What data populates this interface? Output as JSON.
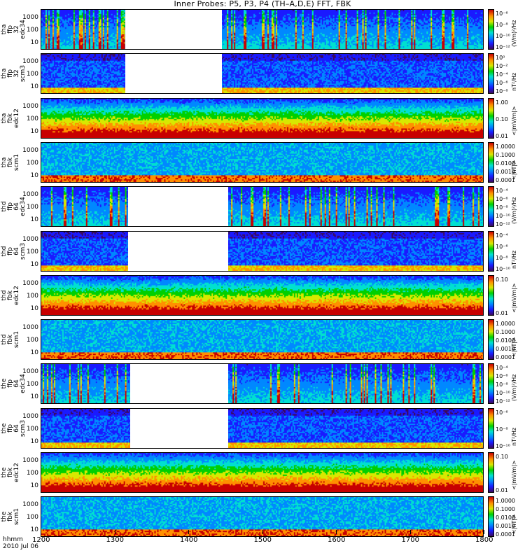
{
  "title": "Inner Probes: P5, P3, P4 (TH–A,D,E) FFT, FBK",
  "xaxis": {
    "label_top": "hhmm",
    "label_date": "2010 Jul 06",
    "ticks": [
      "1200",
      "1300",
      "1400",
      "1500",
      "1600",
      "1700",
      "1800"
    ]
  },
  "chart_data": {
    "type": "heatmap",
    "title": "Inner Probes: P5, P3, P4 (TH–A,D,E) FFT, FBK",
    "x": {
      "unit": "hhmm",
      "range": [
        1200,
        1800
      ],
      "ticks": [
        1200,
        1300,
        1400,
        1500,
        1600,
        1700,
        1800
      ]
    },
    "panels": [
      {
        "id": "tha-ffp32-edc34",
        "label": [
          "tha",
          "ffp",
          "32",
          "edc34"
        ],
        "yticks": [
          "1000",
          "100",
          "10"
        ],
        "cbar_ticks": [
          "10⁻⁶",
          "10⁻⁸",
          "10⁻¹⁰",
          "10⁻¹²"
        ],
        "cbar_unit": "(V/m)²/Hz",
        "data_gap": [
          1314,
          1445
        ]
      },
      {
        "id": "tha-ffp32-scm3",
        "label": [
          "tha",
          "ffp",
          "32",
          "scm3"
        ],
        "yticks": [
          "1000",
          "100",
          "10"
        ],
        "cbar_ticks": [
          "10⁰",
          "10⁻²",
          "10⁻⁴",
          "10⁻⁶",
          "10⁻⁸"
        ],
        "cbar_unit": "nT²/Hz",
        "data_gap": [
          1314,
          1445
        ]
      },
      {
        "id": "tha-fbk-edc12",
        "label": [
          "tha",
          "fbk",
          "edc12"
        ],
        "yticks": [
          "1000",
          "100",
          "10"
        ],
        "cbar_ticks": [
          "1.00",
          "0.10",
          "0.01"
        ],
        "cbar_unit": "<|mV/m|>",
        "data_gap": null
      },
      {
        "id": "tha-fbk-scm1",
        "label": [
          "tha",
          "fbk",
          "scm1"
        ],
        "yticks": [
          "1000",
          "100",
          "10"
        ],
        "cbar_ticks": [
          "1.0000",
          "0.1000",
          "0.0100",
          "0.0010",
          "0.0001"
        ],
        "cbar_unit": "<|nT|>",
        "data_gap": null
      },
      {
        "id": "thd-ffp64-edc34",
        "label": [
          "thd",
          "ffp",
          "64",
          "edc34"
        ],
        "yticks": [
          "1000",
          "100",
          "10"
        ],
        "cbar_ticks": [
          "10⁻⁴",
          "10⁻⁶",
          "10⁻⁸",
          "10⁻¹⁰",
          "10⁻¹²"
        ],
        "cbar_unit": "(V/m)²/Hz",
        "data_gap": [
          1318,
          1453
        ]
      },
      {
        "id": "thd-ffp64-scm3",
        "label": [
          "thd",
          "ffp",
          "64",
          "scm3"
        ],
        "yticks": [
          "1000",
          "100",
          "10"
        ],
        "cbar_ticks": [
          "10⁻⁴",
          "10⁻⁶",
          "10⁻⁸",
          "10⁻¹⁰"
        ],
        "cbar_unit": "nT²/Hz",
        "data_gap": [
          1318,
          1453
        ]
      },
      {
        "id": "thd-fbk-edc12",
        "label": [
          "thd",
          "fbk",
          "edc12"
        ],
        "yticks": [
          "1000",
          "100",
          "10"
        ],
        "cbar_ticks": [
          "0.10",
          "0.01"
        ],
        "cbar_unit": "<|mV/m|>",
        "data_gap": null
      },
      {
        "id": "thd-fbk-scm1",
        "label": [
          "thd",
          "fbk",
          "scm1"
        ],
        "yticks": [
          "1000",
          "100",
          "10"
        ],
        "cbar_ticks": [
          "1.0000",
          "0.1000",
          "0.0100",
          "0.0010",
          "0.0001"
        ],
        "cbar_unit": "<|nT|>",
        "data_gap": null
      },
      {
        "id": "the-ffp64-edc34",
        "label": [
          "the",
          "ffp",
          "64",
          "edc34"
        ],
        "yticks": [
          "1000",
          "100",
          "10"
        ],
        "cbar_ticks": [
          "10⁻⁴",
          "10⁻⁶",
          "10⁻⁸",
          "10⁻¹⁰",
          "10⁻¹²"
        ],
        "cbar_unit": "(V/m)²/Hz",
        "data_gap": [
          1320,
          1453
        ]
      },
      {
        "id": "the-ffp64-scm3",
        "label": [
          "the",
          "ffp",
          "64",
          "scm3"
        ],
        "yticks": [
          "1000",
          "100",
          "10"
        ],
        "cbar_ticks": [
          "10⁻⁶",
          "10⁻⁸",
          "10⁻¹⁰"
        ],
        "cbar_unit": "nT²/Hz",
        "data_gap": [
          1320,
          1453
        ]
      },
      {
        "id": "the-fbk-edc12",
        "label": [
          "the",
          "fbk",
          "edc12"
        ],
        "yticks": [
          "1000",
          "100",
          "10"
        ],
        "cbar_ticks": [
          "0.10",
          "0.01"
        ],
        "cbar_unit": "<|mV/m|>",
        "data_gap": null
      },
      {
        "id": "the-fbk-scm1",
        "label": [
          "the",
          "fbk",
          "scm1"
        ],
        "yticks": [
          "1000",
          "100",
          "10"
        ],
        "cbar_ticks": [
          "1.0000",
          "0.1000",
          "0.0100",
          "0.0010",
          "0.0001"
        ],
        "cbar_unit": "<|nT|>",
        "data_gap": null
      }
    ],
    "colorbar_colors": [
      "#3b0a5c",
      "#1a1aff",
      "#0088ff",
      "#00e0d0",
      "#00d000",
      "#d8e800",
      "#ff9000",
      "#c80000"
    ]
  }
}
